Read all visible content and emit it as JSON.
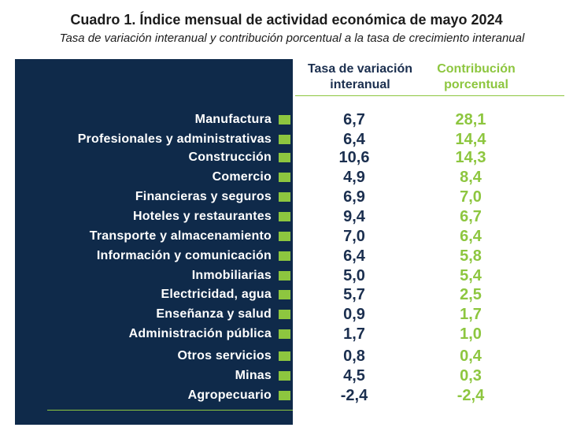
{
  "title": "Cuadro 1. Índice mensual de actividad económica de mayo 2024",
  "subtitle": "Tasa de variación interanual y contribución porcentual a la tasa de crecimiento interanual",
  "columns": {
    "rate": "Tasa de variación interanual",
    "contribution": "Contribución porcentual"
  },
  "colors": {
    "panel": "#0f2a4a",
    "accent_green": "#8dc63f",
    "navy_text": "#1b2f4f"
  },
  "rows": [
    {
      "label": "Manufactura",
      "rate": "6,7",
      "contribution": "28,1"
    },
    {
      "label": "Profesionales y administrativas",
      "rate": "6,4",
      "contribution": "14,4"
    },
    {
      "label": "Construcción",
      "rate": "10,6",
      "contribution": "14,3"
    },
    {
      "label": "Comercio",
      "rate": "4,9",
      "contribution": "8,4"
    },
    {
      "label": "Financieras y seguros",
      "rate": "6,9",
      "contribution": "7,0"
    },
    {
      "label": "Hoteles y restaurantes",
      "rate": "9,4",
      "contribution": "6,7"
    },
    {
      "label": "Transporte y almacenamiento",
      "rate": "7,0",
      "contribution": "6,4"
    },
    {
      "label": "Información y comunicación",
      "rate": "6,4",
      "contribution": "5,8"
    },
    {
      "label": "Inmobiliarias",
      "rate": "5,0",
      "contribution": "5,4"
    },
    {
      "label": "Electricidad, agua",
      "rate": "5,7",
      "contribution": "2,5"
    },
    {
      "label": "Enseñanza y salud",
      "rate": "0,9",
      "contribution": "1,7"
    },
    {
      "label": "Administración pública",
      "rate": "1,7",
      "contribution": "1,0"
    },
    {
      "label": "Otros servicios",
      "rate": "0,8",
      "contribution": "0,4"
    },
    {
      "label": "Minas",
      "rate": "4,5",
      "contribution": "0,3"
    },
    {
      "label": "Agropecuario",
      "rate": "-2,4",
      "contribution": "-2,4"
    }
  ]
}
